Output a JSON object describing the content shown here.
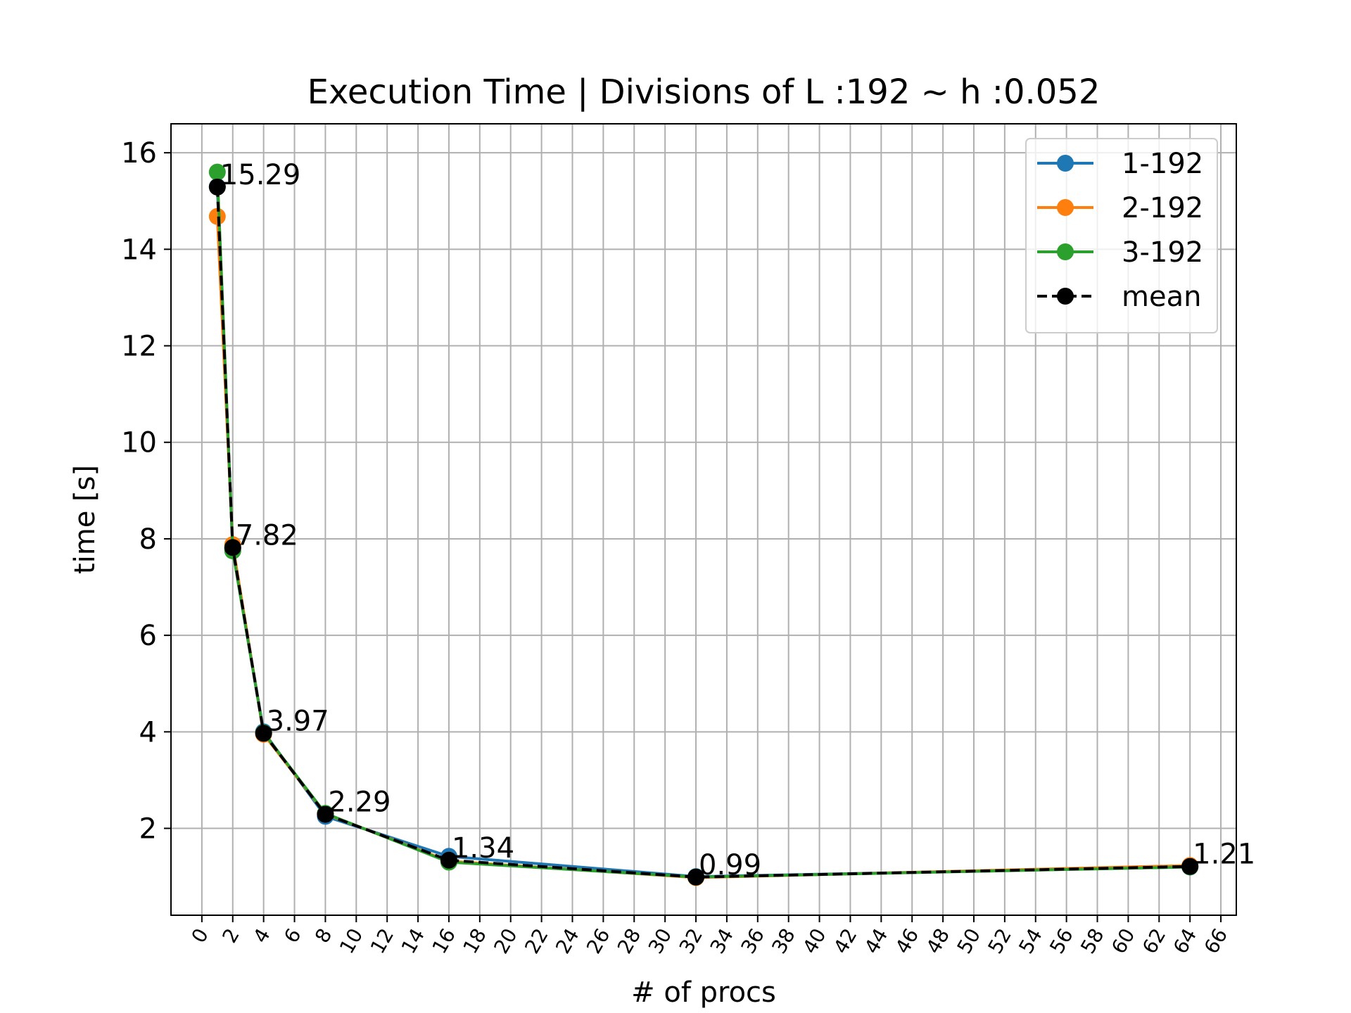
{
  "chart_data": {
    "type": "line",
    "title": "Execution Time | Divisions of L :192 ~ h :0.052",
    "xlabel": "# of procs",
    "ylabel": "time [s]",
    "xlim": [
      -2,
      67
    ],
    "ylim": [
      0.2,
      16.6
    ],
    "x_ticks": [
      0,
      2,
      4,
      6,
      8,
      10,
      12,
      14,
      16,
      18,
      20,
      22,
      24,
      26,
      28,
      30,
      32,
      34,
      36,
      38,
      40,
      42,
      44,
      46,
      48,
      50,
      52,
      54,
      56,
      58,
      60,
      62,
      64,
      66
    ],
    "y_ticks": [
      2,
      4,
      6,
      8,
      10,
      12,
      14,
      16
    ],
    "grid": true,
    "legend_position": "top-right",
    "x": [
      1,
      2,
      4,
      8,
      16,
      32,
      64
    ],
    "series": [
      {
        "name": "1-192",
        "color": "#1f77b4",
        "style": "solid",
        "values": [
          15.3,
          7.8,
          4.0,
          2.25,
          1.42,
          1.0,
          1.2
        ]
      },
      {
        "name": "2-192",
        "color": "#ff7f0e",
        "style": "solid",
        "values": [
          14.68,
          7.88,
          3.95,
          2.3,
          1.32,
          0.98,
          1.23
        ]
      },
      {
        "name": "3-192",
        "color": "#2ca02c",
        "style": "solid",
        "values": [
          15.6,
          7.75,
          3.98,
          2.31,
          1.3,
          0.99,
          1.2
        ]
      },
      {
        "name": "mean",
        "color": "#000000",
        "style": "dashed",
        "values": [
          15.29,
          7.82,
          3.97,
          2.29,
          1.34,
          0.99,
          1.21
        ]
      }
    ],
    "data_labels": [
      "15.29",
      "7.82",
      "3.97",
      "2.29",
      "1.34",
      "0.99",
      "1.21"
    ]
  }
}
